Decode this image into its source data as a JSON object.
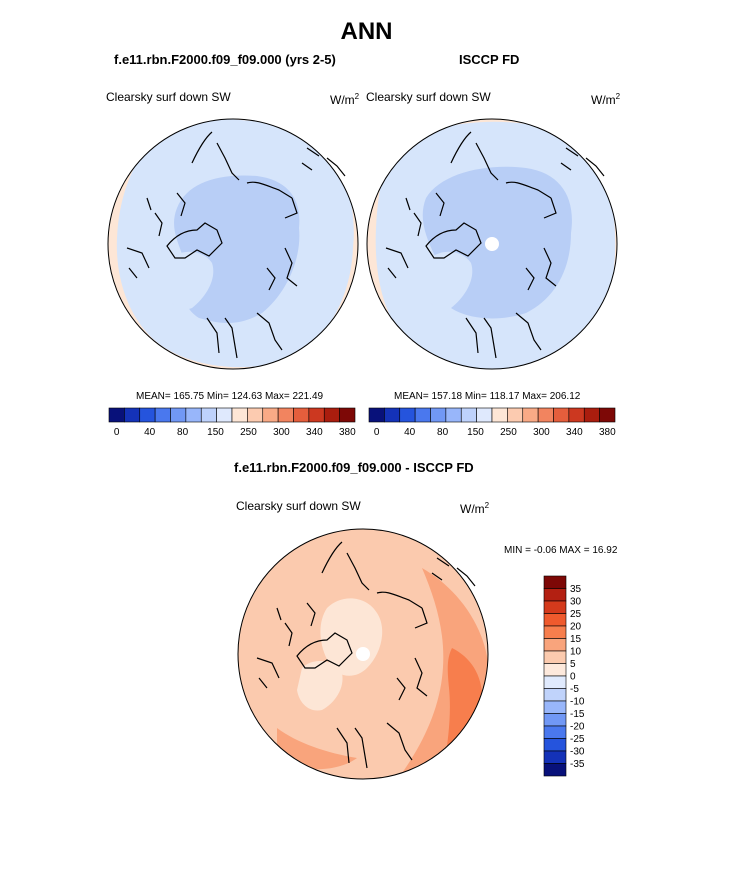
{
  "title": "ANN",
  "panels": {
    "model": {
      "case": "f.e11.rbn.F2000.f09_f09.000 (yrs 2-5)",
      "variable": "Clearsky surf down SW",
      "units_base": "W/m",
      "units_exp": "2",
      "stats": "MEAN= 165.75  Min= 124.63  Max= 221.49"
    },
    "obs": {
      "case": "ISCCP FD",
      "variable": "Clearsky surf down SW",
      "units_base": "W/m",
      "units_exp": "2",
      "stats": "MEAN= 157.18  Min= 118.17  Max= 206.12"
    },
    "diff": {
      "case": "f.e11.rbn.F2000.f09_f09.000 - ISCCP FD",
      "variable": "Clearsky surf down SW",
      "units_base": "W/m",
      "units_exp": "2",
      "stats": "MIN =  -0.06 MAX =  16.92"
    }
  },
  "colorbars": {
    "absolute": {
      "colors": [
        "#08117a",
        "#1432b8",
        "#2554dd",
        "#4a78ee",
        "#7198f5",
        "#98b6fa",
        "#bed2fc",
        "#dfe9fd",
        "#fde6d6",
        "#fccbb0",
        "#f9aa86",
        "#f2845f",
        "#e55e3c",
        "#cc3820",
        "#aa1d0e",
        "#7d0806"
      ],
      "labels": [
        "0",
        "40",
        "80",
        "150",
        "250",
        "300",
        "340",
        "380"
      ]
    },
    "difference": {
      "colors": [
        "#7d0806",
        "#b32012",
        "#d43a1c",
        "#ef5a2d",
        "#f77e4d",
        "#f9a47c",
        "#fbcaae",
        "#fde9dc",
        "#e0eafd",
        "#c0d3fb",
        "#98b6fa",
        "#7198f5",
        "#4a78ee",
        "#2554dd",
        "#1432b8",
        "#08117a"
      ],
      "labels": [
        "35",
        "30",
        "25",
        "20",
        "15",
        "10",
        "5",
        "0",
        "-5",
        "-10",
        "-15",
        "-20",
        "-25",
        "-30",
        "-35"
      ]
    }
  },
  "map_colors": {
    "light_blue": "#d6e5fb",
    "mid_blue": "#b8cef6",
    "peach": "#fde6d6",
    "light_orange": "#fbcaae",
    "orange": "#f9a47c",
    "deep_orange": "#f77e4d"
  }
}
